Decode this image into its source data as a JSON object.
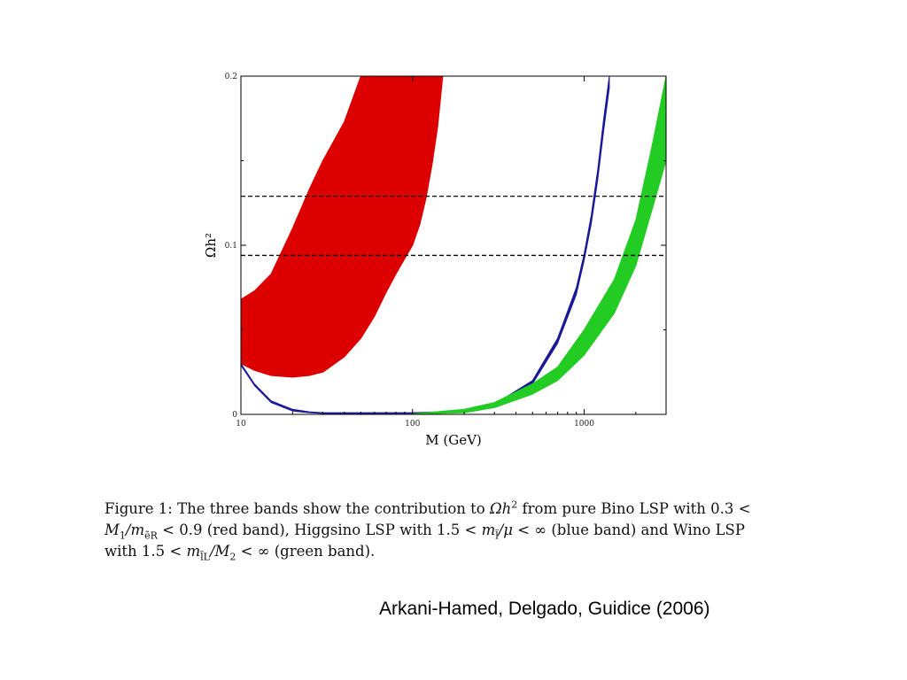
{
  "chart_data": {
    "type": "area",
    "title": "",
    "xlabel": "M (GeV)",
    "ylabel": "Ωh²",
    "xscale": "log",
    "xlim": [
      10,
      3000
    ],
    "ylim": [
      0,
      0.2
    ],
    "x_ticks": [
      10,
      100,
      1000
    ],
    "x_tick_labels": [
      "10",
      "100",
      "1000"
    ],
    "y_ticks": [
      0,
      0.1,
      0.2
    ],
    "y_tick_labels": [
      "0",
      "0.1",
      "0.2"
    ],
    "grid": false,
    "reference_lines": [
      0.094,
      0.129
    ],
    "series": [
      {
        "color": "#dd0000",
        "style": "band",
        "x": [
          10,
          12,
          15,
          20,
          25,
          30,
          40,
          50,
          60,
          70,
          80,
          90,
          100,
          110,
          120,
          130,
          140,
          150
        ],
        "upper": [
          0.068,
          0.073,
          0.083,
          0.11,
          0.133,
          0.15,
          0.173,
          0.2,
          null,
          null,
          null,
          null,
          null,
          null,
          null,
          null,
          null,
          null
        ],
        "lower": [
          0.03,
          0.026,
          0.023,
          0.022,
          0.023,
          0.025,
          0.034,
          0.045,
          0.058,
          0.072,
          0.083,
          0.092,
          0.1,
          0.112,
          0.128,
          0.148,
          0.17,
          0.2
        ]
      },
      {
        "color": "#1a1a99",
        "style": "band",
        "x": [
          10,
          12,
          15,
          20,
          25,
          30,
          50,
          100,
          200,
          300,
          500,
          700,
          900,
          1000,
          1100,
          1200,
          1300,
          1400
        ],
        "upper": [
          0.03,
          0.018,
          0.008,
          0.003,
          0.0015,
          0.001,
          0.001,
          0.001,
          0.002,
          0.006,
          0.02,
          0.045,
          0.075,
          0.095,
          0.118,
          0.145,
          0.175,
          0.2
        ],
        "lower": [
          0.029,
          0.017,
          0.007,
          0.002,
          0.001,
          0.0005,
          0.0005,
          0.0006,
          0.0015,
          0.005,
          0.018,
          0.042,
          0.071,
          0.091,
          0.113,
          0.139,
          0.168,
          0.193
        ]
      },
      {
        "color": "#22cc22",
        "style": "band",
        "x": [
          100,
          200,
          300,
          500,
          700,
          1000,
          1500,
          2000,
          2500,
          3000
        ],
        "upper": [
          0.0003,
          0.003,
          0.007,
          0.018,
          0.028,
          0.05,
          0.08,
          0.115,
          0.16,
          0.2
        ],
        "lower": [
          0.0001,
          0.001,
          0.004,
          0.012,
          0.02,
          0.035,
          0.06,
          0.088,
          0.122,
          0.15
        ]
      }
    ]
  },
  "caption": {
    "figure_label": "Figure 1:",
    "line1_text": "The three bands show the contribution to",
    "omega": "Ωh",
    "sq": "2",
    "line1_rest": "from pure Bino LSP with 0.3 <",
    "m1": "M",
    "m1_sub": "1",
    "slash_m": "/m",
    "m_sub": "ẽR",
    "line2_rest": "< 0.9 (red band), Higgsino LSP with 1.5 <",
    "m_l": "m",
    "m_l_sub": "l̃",
    "mu": "/μ",
    "line2_end": "< ∞ (blue band) and Wino LSP",
    "line3_start": "with 1.5 <",
    "m_lL": "m",
    "m_lL_sub": "l̃L",
    "m2": "/M",
    "m2_sub": "2",
    "line3_end": "< ∞ (green band)."
  },
  "attribution": "Arkani-Hamed, Delgado, Guidice (2006)"
}
